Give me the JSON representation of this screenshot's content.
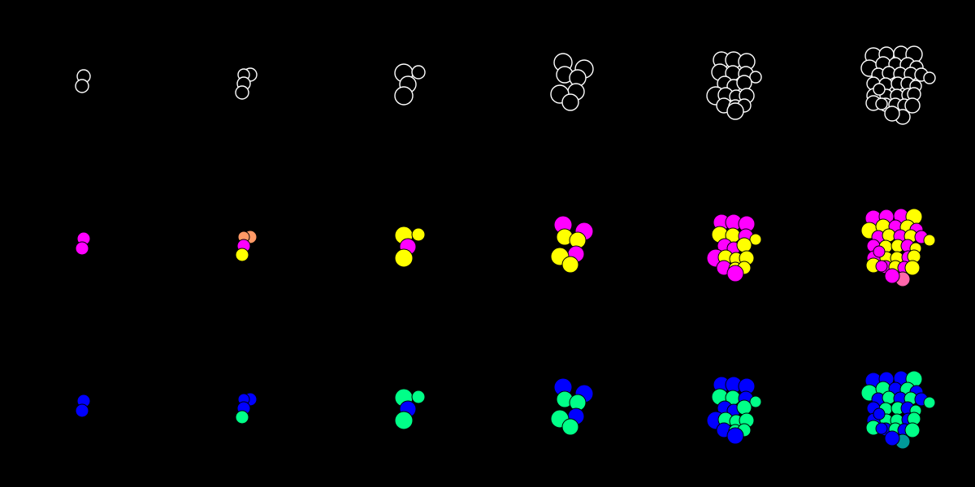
{
  "background": "#000000",
  "palette": {
    "outline_stroke": "#ffffff",
    "filled_stroke": "#000000",
    "magenta": "#ff00ff",
    "yellow": "#ffff00",
    "salmon": "#ff9966",
    "pink": "#ff66aa",
    "blue": "#0000ff",
    "mint": "#00ff88",
    "teal": "#009999"
  },
  "rows": [
    {
      "id": "outline",
      "style": "outline"
    },
    {
      "id": "type-coloring",
      "style": "filled",
      "color_map": {
        "a": "magenta",
        "b": "yellow",
        "c": "salmon",
        "d": "pink"
      }
    },
    {
      "id": "lineage-coloring",
      "style": "filled",
      "color_map": {
        "a": "blue",
        "b": "mint",
        "c": "blue",
        "d": "teal"
      }
    }
  ],
  "stages": [
    {
      "id": "stage-1",
      "cells": [
        "a",
        "a"
      ]
    },
    {
      "id": "stage-2",
      "cells": [
        "c",
        "c",
        "a",
        "b"
      ]
    },
    {
      "id": "stage-3",
      "cells": [
        "b",
        "b",
        "a",
        "b"
      ]
    },
    {
      "id": "stage-4",
      "cells": [
        "a",
        "a",
        "b",
        "b",
        "a",
        "b",
        "b"
      ]
    },
    {
      "id": "stage-5",
      "cells": [
        "a",
        "a",
        "a",
        "b",
        "b",
        "a",
        "b",
        "a",
        "a",
        "b",
        "a",
        "b",
        "b",
        "b",
        "a",
        "b",
        "b",
        "a"
      ]
    },
    {
      "id": "stage-6",
      "cells": [
        "a",
        "a",
        "a",
        "b",
        "b",
        "b",
        "a",
        "b",
        "a",
        "a",
        "b",
        "a",
        "b",
        "a",
        "b",
        "a",
        "b",
        "b",
        "a",
        "b",
        "a",
        "b",
        "b",
        "a",
        "b",
        "b",
        "a",
        "b",
        "a",
        "d",
        "a",
        "b",
        "a",
        "a"
      ]
    }
  ]
}
